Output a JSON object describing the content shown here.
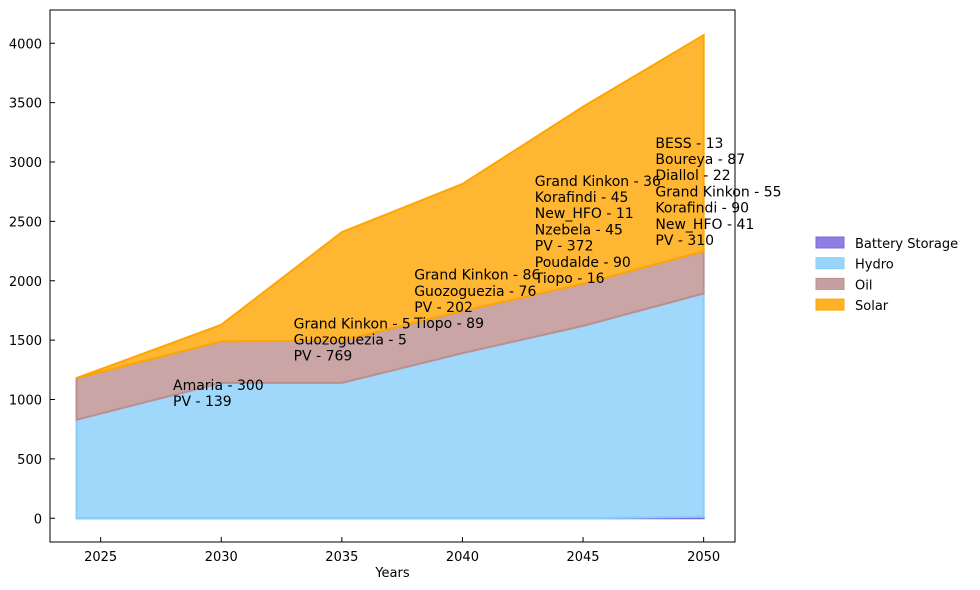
{
  "chart_data": {
    "type": "area",
    "stacked": true,
    "x": [
      2024,
      2030,
      2035,
      2040,
      2045,
      2050
    ],
    "xlabel": "Years",
    "ylabel": "",
    "xlim": [
      2022.9,
      2051.3
    ],
    "ylim": [
      -200,
      4280
    ],
    "xticks": [
      2025,
      2030,
      2035,
      2040,
      2045,
      2050
    ],
    "yticks": [
      0,
      500,
      1000,
      1500,
      2000,
      2500,
      3000,
      3500,
      4000
    ],
    "grid": false,
    "legend_position": "right",
    "series": [
      {
        "name": "Battery Storage",
        "color": "#7B68DD",
        "values": [
          0,
          0,
          0,
          0,
          0,
          13
        ]
      },
      {
        "name": "Hydro",
        "color": "#87CEFA",
        "values": [
          830,
          1140,
          1140,
          1390,
          1620,
          1880
        ]
      },
      {
        "name": "Oil",
        "color": "#BC8F8F",
        "values": [
          350,
          350,
          355,
          355,
          355,
          355
        ]
      },
      {
        "name": "Solar",
        "color": "#FFA500",
        "values": [
          0,
          139,
          914,
          1070,
          1490,
          1820
        ]
      }
    ],
    "annotations": [
      {
        "x": 2028,
        "y_top": 1080,
        "lines": [
          "Amaria - 300",
          "PV - 139"
        ]
      },
      {
        "x": 2033,
        "y_top": 1600,
        "lines": [
          "Grand Kinkon - 5",
          "Guozoguezia - 5",
          "PV - 769"
        ]
      },
      {
        "x": 2038,
        "y_top": 2010,
        "lines": [
          "Grand Kinkon - 86",
          "Guozoguezia - 76",
          "PV - 202",
          "Tiopo - 89"
        ]
      },
      {
        "x": 2043,
        "y_top": 2800,
        "lines": [
          "Grand Kinkon - 36",
          "Korafindi - 45",
          "New_HFO - 11",
          "Nzebela - 45",
          "PV - 372",
          "Poudalde - 90",
          "Tiopo - 16"
        ]
      },
      {
        "x": 2048,
        "y_top": 3120,
        "lines": [
          "BESS - 13",
          "Boureya - 87",
          "Diallol - 22",
          "Grand Kinkon - 55",
          "Korafindi - 90",
          "New_HFO - 41",
          "PV - 310"
        ]
      }
    ]
  }
}
